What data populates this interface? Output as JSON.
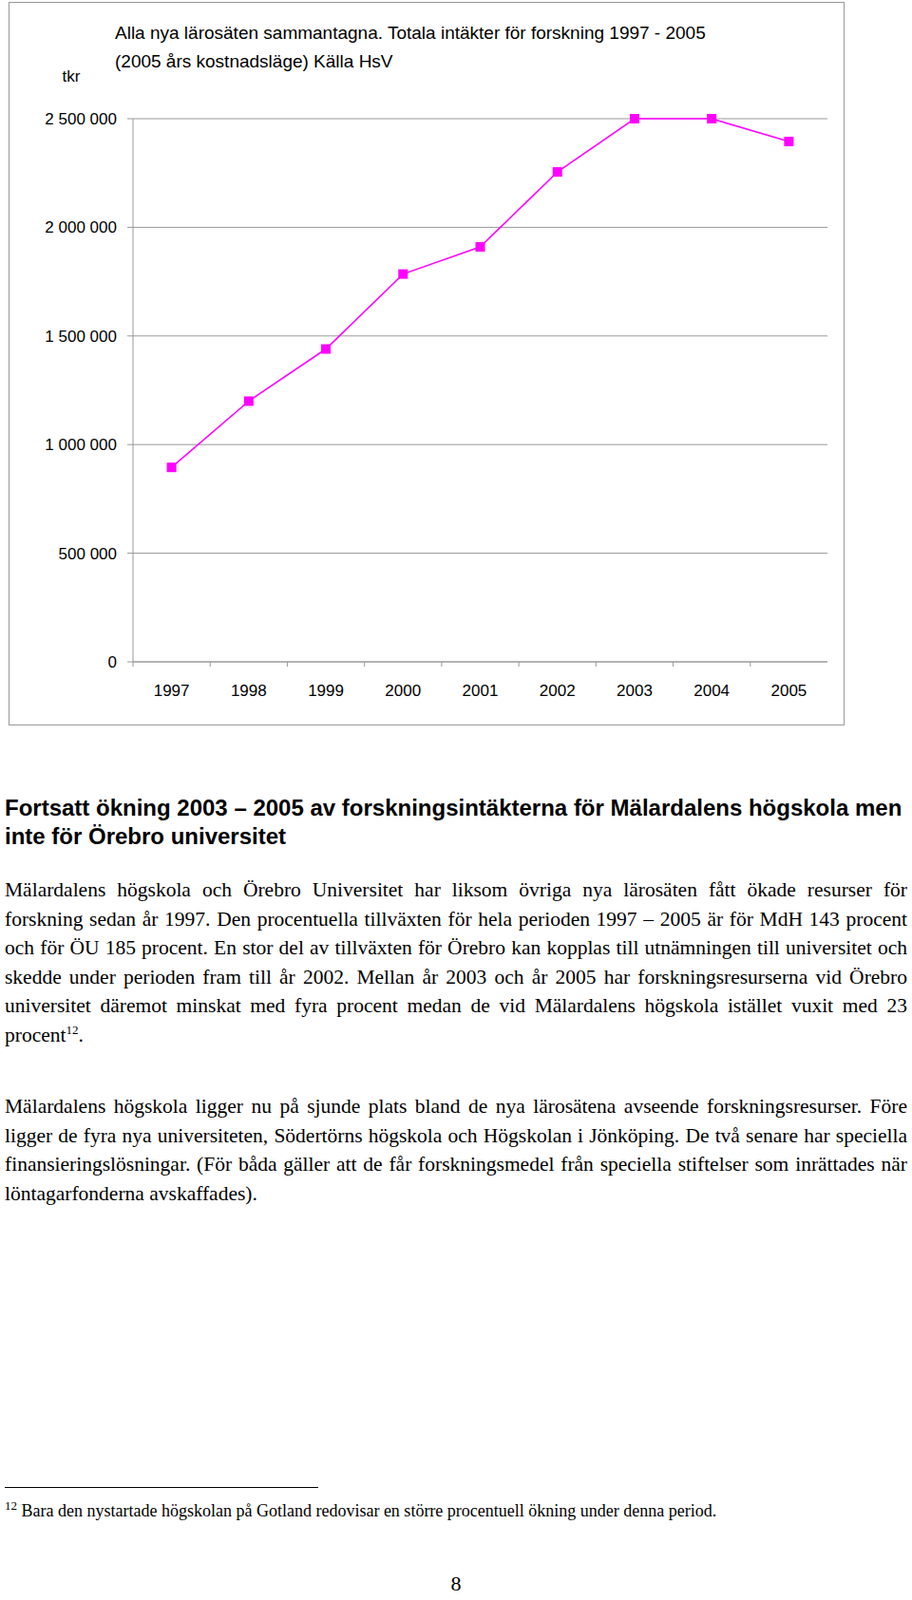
{
  "chart_data": {
    "type": "line",
    "title": "Alla nya lärosäten sammantagna. Totala intäkter för forskning 1997 - 2005",
    "subtitle": "(2005 års kostnadsläge) Källa HsV",
    "y_label": "tkr",
    "categories": [
      "1997",
      "1998",
      "1999",
      "2000",
      "2001",
      "2002",
      "2003",
      "2004",
      "2005"
    ],
    "values": [
      895000,
      1200000,
      1440000,
      1785000,
      1910000,
      2255000,
      2500000,
      2500000,
      2395000
    ],
    "color": "#ff00ff",
    "marker": "square",
    "line_style": "solid",
    "ylim": [
      0,
      2500000
    ],
    "yticks": [
      0,
      {
        "value": 500000,
        "label": "500 000"
      },
      {
        "value": 1000000,
        "label": "1 000 000"
      },
      {
        "value": 1500000,
        "label": "1 500 000"
      },
      {
        "value": 2000000,
        "label": "2 000 000"
      },
      {
        "value": 2500000,
        "label": "2 500 000"
      }
    ],
    "grid": true
  },
  "document": {
    "heading": "Fortsatt ökning 2003 – 2005 av forskningsintäkterna för Mälardalens högskola men inte för Örebro universitet",
    "paragraphs": [
      {
        "text": "Mälardalens högskola och Örebro Universitet har liksom övriga nya lärosäten fått ökade resurser för forskning sedan år 1997. Den procentuella tillväxten för hela perioden 1997 – 2005 är för MdH 143 procent och för ÖU 185 procent. En stor del av tillväxten för Örebro kan kopplas till utnämningen till universitet och skedde under perioden fram till år 2002. Mellan år 2003 och år 2005 har forskningsresurserna vid Örebro universitet däremot minskat med fyra procent medan de vid Mälardalens högskola istället vuxit med 23 procent",
        "footnote_ref": "12",
        "after": "."
      },
      {
        "text": "Mälardalens högskola ligger nu på sjunde plats bland de nya lärosätena avseende forskningsresurser. Före ligger de fyra nya universiteten, Södertörns högskola och Högskolan i Jönköping. De två senare har speciella finansieringslösningar. (För båda gäller att de får forskningsmedel från speciella stiftelser som inrättades när löntagarfonderna avskaffades)."
      }
    ],
    "footnote": {
      "number": "12",
      "text": "Bara den nystartade högskolan på Gotland redovisar en större procentuell ökning under denna period."
    },
    "page_number": "8"
  }
}
